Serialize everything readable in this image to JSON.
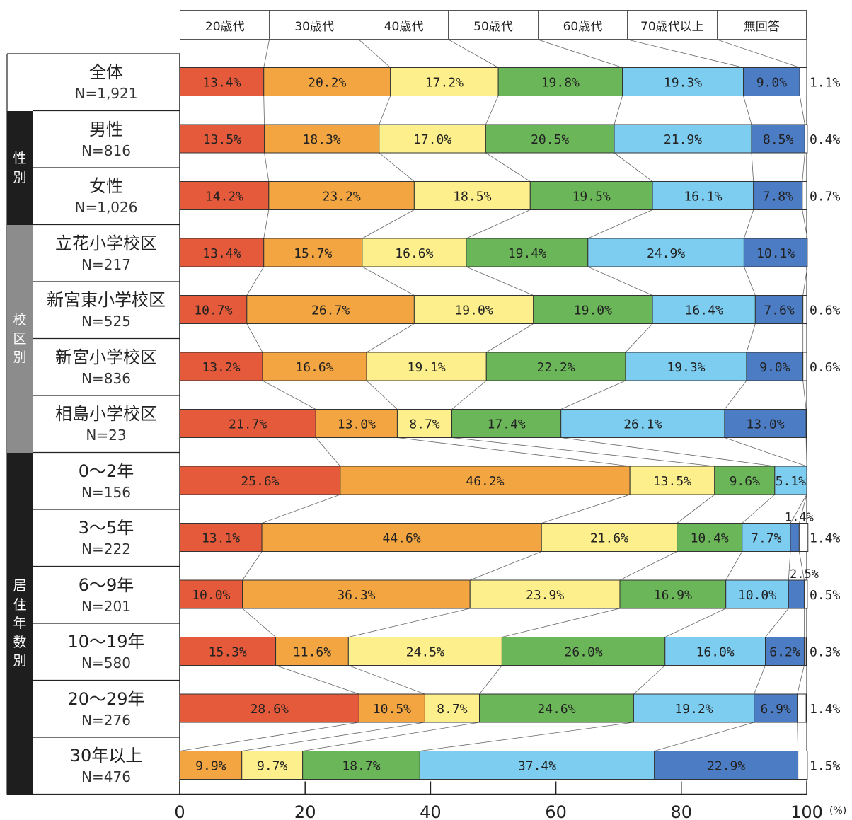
{
  "chart_data": {
    "type": "bar",
    "orientation": "horizontal",
    "stacked": "percent",
    "xlim": [
      0,
      100
    ],
    "xticks": [
      "0",
      "20",
      "40",
      "60",
      "80",
      "100"
    ],
    "xunit": "(%)",
    "legend": [
      "20歳代",
      "30歳代",
      "40歳代",
      "50歳代",
      "60歳代",
      "70歳代以上",
      "無回答"
    ],
    "legend_position": "top",
    "colors": [
      "#e55a3a",
      "#f2a541",
      "#fdf08c",
      "#6cb65a",
      "#7dcdf0",
      "#4c7cc4",
      "#ffffff"
    ],
    "groups": [
      {
        "label": "",
        "chars": []
      },
      {
        "label": "性別",
        "chars": [
          "性",
          "別"
        ],
        "color": "#1e1e1e"
      },
      {
        "label": "校区別",
        "chars": [
          "校",
          "区",
          "別"
        ],
        "color": "#8c8c8c"
      },
      {
        "label": "居住年数別",
        "chars": [
          "居",
          "住",
          "年",
          "数",
          "別"
        ],
        "color": "#1e1e1e"
      }
    ],
    "rows": [
      {
        "name": "全体",
        "n": "N=1,921",
        "group": 0,
        "values": [
          13.4,
          20.2,
          17.2,
          19.8,
          19.3,
          9.0,
          1.1
        ]
      },
      {
        "name": "男性",
        "n": "N=816",
        "group": 1,
        "values": [
          13.5,
          18.3,
          17.0,
          20.5,
          21.9,
          8.5,
          0.4
        ]
      },
      {
        "name": "女性",
        "n": "N=1,026",
        "group": 1,
        "values": [
          14.2,
          23.2,
          18.5,
          19.5,
          16.1,
          7.8,
          0.7
        ]
      },
      {
        "name": "立花小学校区",
        "n": "N=217",
        "group": 2,
        "values": [
          13.4,
          15.7,
          16.6,
          19.4,
          24.9,
          10.1,
          null
        ]
      },
      {
        "name": "新宮東小学校区",
        "n": "N=525",
        "group": 2,
        "values": [
          10.7,
          26.7,
          19.0,
          19.0,
          16.4,
          7.6,
          0.6
        ]
      },
      {
        "name": "新宮小学校区",
        "n": "N=836",
        "group": 2,
        "values": [
          13.2,
          16.6,
          19.1,
          22.2,
          19.3,
          9.0,
          0.6
        ]
      },
      {
        "name": "相島小学校区",
        "n": "N=23",
        "group": 2,
        "values": [
          21.7,
          13.0,
          8.7,
          17.4,
          26.1,
          13.0,
          null
        ]
      },
      {
        "name": "0～2年",
        "n": "N=156",
        "group": 3,
        "values": [
          25.6,
          46.2,
          13.5,
          9.6,
          5.1,
          null,
          null
        ]
      },
      {
        "name": "3～5年",
        "n": "N=222",
        "group": 3,
        "values": [
          13.1,
          44.6,
          21.6,
          10.4,
          7.7,
          1.4,
          1.4
        ]
      },
      {
        "name": "6～9年",
        "n": "N=201",
        "group": 3,
        "values": [
          10.0,
          36.3,
          23.9,
          16.9,
          10.0,
          2.5,
          0.5
        ]
      },
      {
        "name": "10～19年",
        "n": "N=580",
        "group": 3,
        "values": [
          15.3,
          11.6,
          24.5,
          26.0,
          16.0,
          6.2,
          0.3
        ]
      },
      {
        "name": "20～29年",
        "n": "N=276",
        "group": 3,
        "values": [
          28.6,
          10.5,
          8.7,
          24.6,
          19.2,
          6.9,
          1.4
        ]
      },
      {
        "name": "30年以上",
        "n": "N=476",
        "group": 3,
        "values": [
          null,
          9.9,
          9.7,
          18.7,
          37.4,
          22.9,
          1.5
        ]
      }
    ]
  }
}
